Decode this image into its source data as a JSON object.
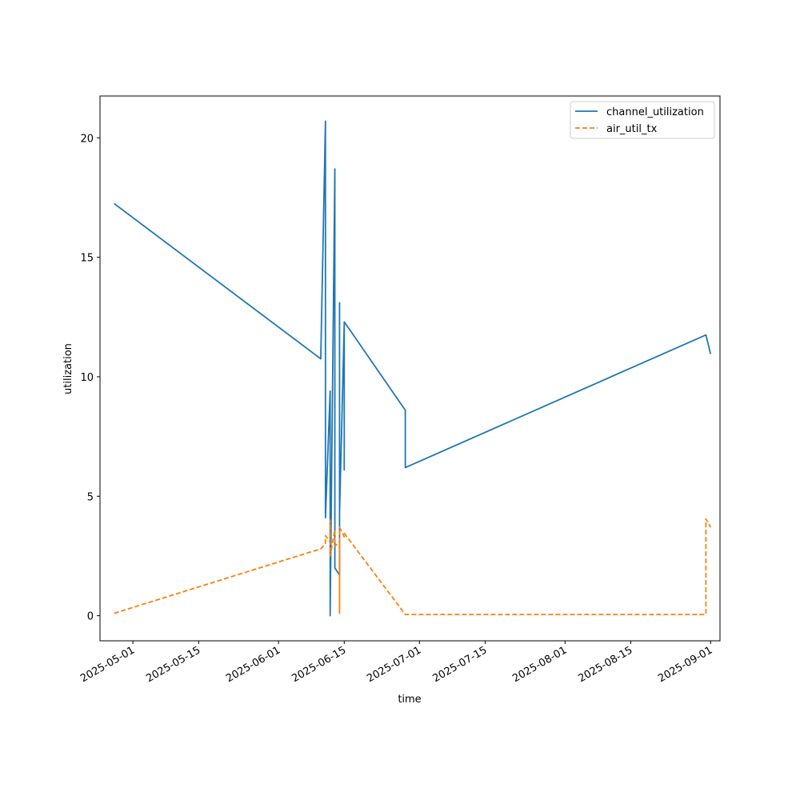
{
  "chart_data": {
    "type": "line",
    "title": "",
    "xlabel": "time",
    "ylabel": "utilization",
    "xlim": [
      "2025-04-24",
      "2025-09-03"
    ],
    "ylim": [
      -1.05,
      21.75
    ],
    "x_ticks": [
      "2025-05-01",
      "2025-05-15",
      "2025-06-01",
      "2025-06-15",
      "2025-07-01",
      "2025-07-15",
      "2025-08-01",
      "2025-08-15",
      "2025-09-01"
    ],
    "y_ticks": [
      0,
      5,
      10,
      15,
      20
    ],
    "grid": false,
    "legend_position": "upper right",
    "series": [
      {
        "name": "channel_utilization",
        "color": "#1f77b4",
        "style": "solid",
        "points": [
          [
            "2025-04-27",
            17.25
          ],
          [
            "2025-06-10",
            10.75
          ],
          [
            "2025-06-11",
            20.7
          ],
          [
            "2025-06-11",
            4.1
          ],
          [
            "2025-06-12",
            9.4
          ],
          [
            "2025-06-12",
            0.0
          ],
          [
            "2025-06-13",
            18.7
          ],
          [
            "2025-06-13",
            2.0
          ],
          [
            "2025-06-14",
            1.7
          ],
          [
            "2025-06-14",
            7.1
          ],
          [
            "2025-06-14",
            4.1
          ],
          [
            "2025-06-14",
            13.1
          ],
          [
            "2025-06-14",
            4.3
          ],
          [
            "2025-06-15",
            12.2
          ],
          [
            "2025-06-15",
            6.1
          ],
          [
            "2025-06-15",
            12.3
          ],
          [
            "2025-06-28",
            8.6
          ],
          [
            "2025-06-28",
            6.2
          ],
          [
            "2025-08-31",
            11.75
          ],
          [
            "2025-09-01",
            10.95
          ]
        ]
      },
      {
        "name": "air_util_tx",
        "color": "#ff7f0e",
        "style": "dashed",
        "points": [
          [
            "2025-04-27",
            0.1
          ],
          [
            "2025-06-10",
            2.8
          ],
          [
            "2025-06-11",
            3.0
          ],
          [
            "2025-06-11",
            3.35
          ],
          [
            "2025-06-12",
            3.1
          ],
          [
            "2025-06-12",
            4.0
          ],
          [
            "2025-06-12",
            2.5
          ],
          [
            "2025-06-13",
            3.6
          ],
          [
            "2025-06-13",
            2.9
          ],
          [
            "2025-06-14",
            3.1
          ],
          [
            "2025-06-14",
            0.1
          ],
          [
            "2025-06-14",
            3.7
          ],
          [
            "2025-06-15",
            3.3
          ],
          [
            "2025-06-15",
            3.45
          ],
          [
            "2025-06-28",
            0.05
          ],
          [
            "2025-08-31",
            0.05
          ],
          [
            "2025-08-31",
            4.05
          ],
          [
            "2025-09-01",
            3.7
          ]
        ]
      }
    ]
  }
}
